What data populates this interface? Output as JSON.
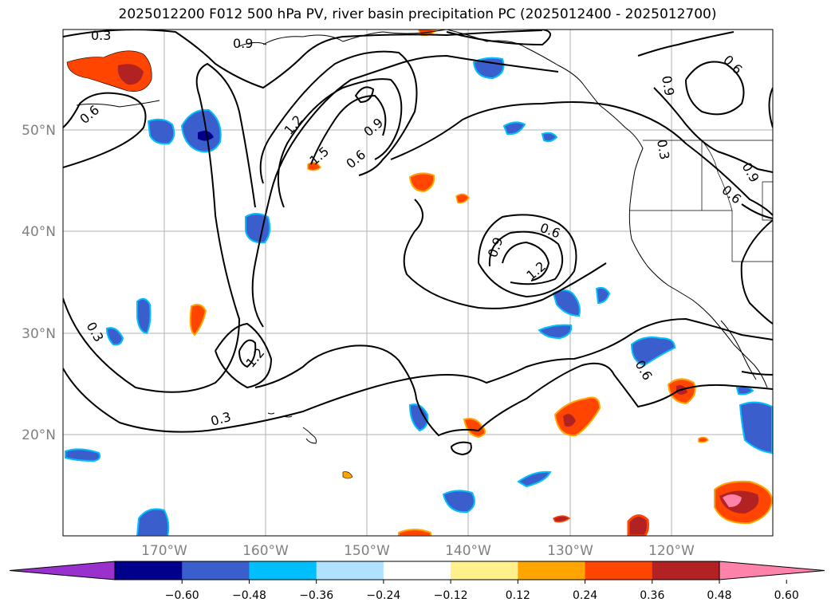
{
  "title": "2025012200 F012 500 hPa PV, river basin precipitation PC (2025012400 - 2025012700)",
  "latitude_labels": [
    "50°N",
    "40°N",
    "30°N",
    "20°N"
  ],
  "longitude_labels": [
    "170°W",
    "160°W",
    "150°W",
    "140°W",
    "130°W",
    "120°W"
  ],
  "colorbar": {
    "tick_labels": [
      "−0.60",
      "−0.48",
      "−0.36",
      "−0.24",
      "−0.12",
      "0.12",
      "0.24",
      "0.36",
      "0.48",
      "0.60"
    ],
    "colors": [
      "#9932cc",
      "#00008b",
      "#3a5fcd",
      "#00bfff",
      "#b0e2ff",
      "#ffffff",
      "#fff08c",
      "#ffa500",
      "#ff4500",
      "#b22222",
      "#ff82ab"
    ]
  },
  "contour_labels": [
    {
      "id": "c1",
      "text": "0.3"
    },
    {
      "id": "c2",
      "text": "0.9"
    },
    {
      "id": "c3",
      "text": "0.6"
    },
    {
      "id": "c4",
      "text": "0.9"
    },
    {
      "id": "c5",
      "text": "0.6"
    },
    {
      "id": "c6",
      "text": "0.3"
    },
    {
      "id": "c7",
      "text": "0.9"
    },
    {
      "id": "c8",
      "text": "0.6"
    },
    {
      "id": "c9",
      "text": "1.2"
    },
    {
      "id": "c10",
      "text": "1.5"
    },
    {
      "id": "c11",
      "text": "0.9"
    },
    {
      "id": "c12",
      "text": "0.6"
    },
    {
      "id": "c13",
      "text": "0.6"
    },
    {
      "id": "c14",
      "text": "0.9"
    },
    {
      "id": "c15",
      "text": "1.2"
    },
    {
      "id": "c16",
      "text": "0.3"
    },
    {
      "id": "c17",
      "text": "1.2"
    },
    {
      "id": "c18",
      "text": "0.3"
    },
    {
      "id": "c19",
      "text": "0.6"
    }
  ]
}
